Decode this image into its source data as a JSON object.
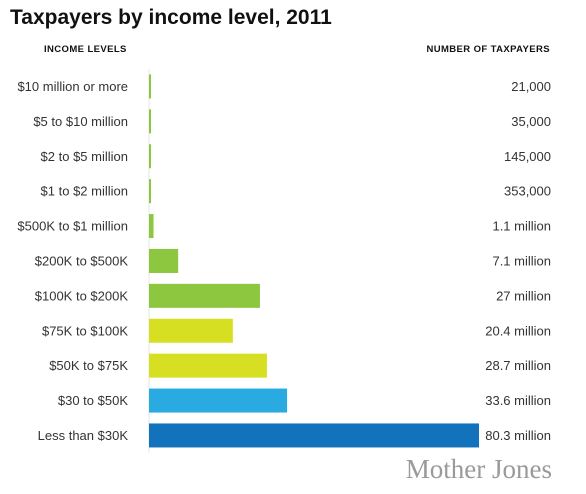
{
  "title": "Taxpayers by income level, 2011",
  "brand": "Mother Jones",
  "chart_data": {
    "type": "bar",
    "orientation": "horizontal",
    "title": "Taxpayers by income level, 2011",
    "category_header": "INCOME LEVELS",
    "value_header": "NUMBER OF TAXPAYERS",
    "categories": [
      "$10 million or more",
      "$5 to $10 million",
      "$2 to $5 million",
      "$1 to $2 million",
      "$500K to $1 million",
      "$200K to $500K",
      "$100K to $200K",
      "$75K to $100K",
      "$50K to $75K",
      "$30 to $50K",
      "Less than $30K"
    ],
    "values": [
      21000,
      35000,
      145000,
      353000,
      1100000,
      7100000,
      27000000,
      20400000,
      28700000,
      33600000,
      80300000
    ],
    "value_labels": [
      "21,000",
      "35,000",
      "145,000",
      "353,000",
      "1.1 million",
      "7.1 million",
      "27 million",
      "20.4 million",
      "28.7 million",
      "33.6 million",
      "80.3 million"
    ],
    "colors": [
      "#8dc63f",
      "#8dc63f",
      "#8dc63f",
      "#8dc63f",
      "#8dc63f",
      "#8dc63f",
      "#8dc63f",
      "#d7df23",
      "#d7df23",
      "#29abe2",
      "#1273bc"
    ],
    "grid": false,
    "legend": "none"
  }
}
